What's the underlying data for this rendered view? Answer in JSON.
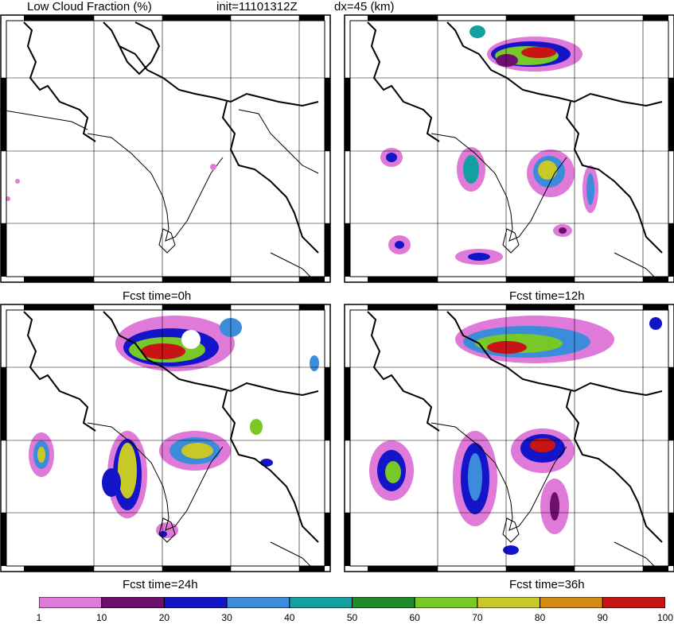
{
  "header": {
    "title": "Low Cloud Fraction (%)",
    "init": "init=11101312Z",
    "resolution": "dx=45 (km)"
  },
  "panels": [
    {
      "id": "p0",
      "caption": "Fcst time=0h"
    },
    {
      "id": "p12",
      "caption": "Fcst time=12h"
    },
    {
      "id": "p24",
      "caption": "Fcst time=24h"
    },
    {
      "id": "p36",
      "caption": "Fcst time=36h"
    }
  ],
  "colorbar": {
    "ticks": [
      "1",
      "10",
      "20",
      "30",
      "40",
      "50",
      "60",
      "70",
      "80",
      "90",
      "100"
    ],
    "colors": [
      "#e07ad8",
      "#6e0f6e",
      "#1414c8",
      "#3c8cdc",
      "#14a0a0",
      "#1e8c28",
      "#78c828",
      "#c8c828",
      "#d28c14",
      "#c81414"
    ]
  }
}
